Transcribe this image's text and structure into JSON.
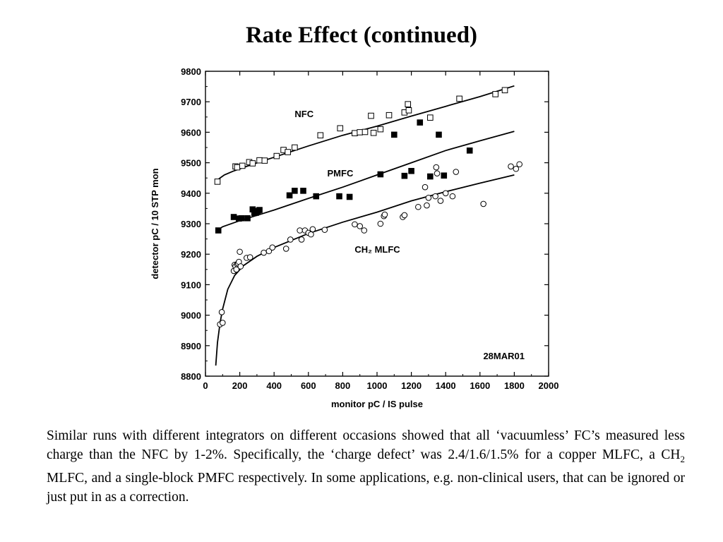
{
  "slide": {
    "title": "Rate Effect (continued)",
    "body": [
      {
        "t": "Similar runs with different integrators on different occasions showed that all ‘vacuumless’ FC’s measured less charge than the NFC by 1-2%. Specifically, the ‘charge defect’ was 2.4/1.6/1.5% for a copper MLFC, a CH"
      },
      {
        "t": "2",
        "sub": true
      },
      {
        "t": " MLFC, and a single-block PMFC respectively. In some applications, e.g. non-clinical users, that can be ignored or just put in as a correction."
      }
    ]
  },
  "chart_data": {
    "type": "scatter",
    "xlabel": "monitor pC / IS pulse",
    "ylabel": "detector pC / 10 STP mon",
    "xlim": [
      0,
      2000
    ],
    "ylim": [
      8800,
      9800
    ],
    "xticks": [
      0,
      200,
      400,
      600,
      800,
      1000,
      1200,
      1400,
      1600,
      1800,
      2000
    ],
    "yticks": [
      8800,
      8900,
      9000,
      9100,
      9200,
      9300,
      9400,
      9500,
      9600,
      9700,
      9800
    ],
    "stamp": "28MAR01",
    "grid": false,
    "series": [
      {
        "name": "NFC",
        "marker": "open-square",
        "label_at": [
          520,
          9650
        ],
        "points": [
          [
            70,
            9438
          ],
          [
            175,
            9488
          ],
          [
            185,
            9485
          ],
          [
            215,
            9490
          ],
          [
            255,
            9502
          ],
          [
            275,
            9498
          ],
          [
            315,
            9508
          ],
          [
            345,
            9507
          ],
          [
            415,
            9522
          ],
          [
            455,
            9542
          ],
          [
            480,
            9535
          ],
          [
            520,
            9550
          ],
          [
            670,
            9590
          ],
          [
            785,
            9613
          ],
          [
            870,
            9597
          ],
          [
            900,
            9600
          ],
          [
            930,
            9601
          ],
          [
            965,
            9654
          ],
          [
            980,
            9598
          ],
          [
            1020,
            9610
          ],
          [
            1070,
            9656
          ],
          [
            1160,
            9665
          ],
          [
            1180,
            9692
          ],
          [
            1185,
            9672
          ],
          [
            1310,
            9648
          ],
          [
            1480,
            9710
          ],
          [
            1690,
            9725
          ],
          [
            1745,
            9738
          ]
        ],
        "fit": [
          [
            60,
            9430
          ],
          [
            80,
            9448
          ],
          [
            110,
            9460
          ],
          [
            160,
            9472
          ],
          [
            250,
            9490
          ],
          [
            400,
            9518
          ],
          [
            600,
            9555
          ],
          [
            800,
            9590
          ],
          [
            1000,
            9620
          ],
          [
            1200,
            9653
          ],
          [
            1400,
            9685
          ],
          [
            1600,
            9717
          ],
          [
            1800,
            9752
          ]
        ]
      },
      {
        "name": "PMFC",
        "marker": "filled-square",
        "label_at": [
          710,
          9455
        ],
        "points": [
          [
            75,
            9278
          ],
          [
            165,
            9322
          ],
          [
            195,
            9317
          ],
          [
            210,
            9318
          ],
          [
            245,
            9318
          ],
          [
            275,
            9347
          ],
          [
            285,
            9335
          ],
          [
            295,
            9336
          ],
          [
            305,
            9342
          ],
          [
            315,
            9345
          ],
          [
            490,
            9393
          ],
          [
            520,
            9408
          ],
          [
            570,
            9408
          ],
          [
            645,
            9390
          ],
          [
            780,
            9390
          ],
          [
            840,
            9388
          ],
          [
            1020,
            9462
          ],
          [
            1100,
            9592
          ],
          [
            1160,
            9457
          ],
          [
            1200,
            9473
          ],
          [
            1250,
            9632
          ],
          [
            1310,
            9455
          ],
          [
            1360,
            9592
          ],
          [
            1390,
            9458
          ],
          [
            1540,
            9540
          ]
        ],
        "fit": [
          [
            60,
            9275
          ],
          [
            100,
            9290
          ],
          [
            200,
            9310
          ],
          [
            400,
            9345
          ],
          [
            600,
            9383
          ],
          [
            800,
            9420
          ],
          [
            1000,
            9460
          ],
          [
            1200,
            9500
          ],
          [
            1400,
            9540
          ],
          [
            1600,
            9572
          ],
          [
            1800,
            9603
          ]
        ]
      },
      {
        "name": "CH₂ MLFC",
        "marker": "open-circle",
        "label_at": [
          870,
          9205
        ],
        "points": [
          [
            85,
            8970
          ],
          [
            95,
            9010
          ],
          [
            100,
            8975
          ],
          [
            165,
            9145
          ],
          [
            170,
            9165
          ],
          [
            175,
            9160
          ],
          [
            180,
            9150
          ],
          [
            185,
            9167
          ],
          [
            190,
            9170
          ],
          [
            195,
            9175
          ],
          [
            200,
            9208
          ],
          [
            205,
            9160
          ],
          [
            240,
            9188
          ],
          [
            260,
            9190
          ],
          [
            340,
            9205
          ],
          [
            370,
            9210
          ],
          [
            390,
            9222
          ],
          [
            470,
            9218
          ],
          [
            495,
            9248
          ],
          [
            550,
            9278
          ],
          [
            560,
            9248
          ],
          [
            580,
            9278
          ],
          [
            600,
            9270
          ],
          [
            615,
            9265
          ],
          [
            625,
            9282
          ],
          [
            695,
            9280
          ],
          [
            870,
            9298
          ],
          [
            900,
            9292
          ],
          [
            925,
            9278
          ],
          [
            1020,
            9300
          ],
          [
            1040,
            9325
          ],
          [
            1045,
            9330
          ],
          [
            1150,
            9322
          ],
          [
            1160,
            9328
          ],
          [
            1240,
            9355
          ],
          [
            1280,
            9420
          ],
          [
            1290,
            9360
          ],
          [
            1300,
            9385
          ],
          [
            1340,
            9390
          ],
          [
            1345,
            9485
          ],
          [
            1350,
            9465
          ],
          [
            1370,
            9375
          ],
          [
            1400,
            9400
          ],
          [
            1440,
            9390
          ],
          [
            1460,
            9470
          ],
          [
            1620,
            9365
          ],
          [
            1780,
            9488
          ],
          [
            1810,
            9480
          ],
          [
            1830,
            9495
          ]
        ],
        "fit": [
          [
            60,
            8835
          ],
          [
            70,
            8910
          ],
          [
            85,
            8975
          ],
          [
            100,
            9020
          ],
          [
            130,
            9085
          ],
          [
            170,
            9130
          ],
          [
            220,
            9162
          ],
          [
            300,
            9193
          ],
          [
            400,
            9222
          ],
          [
            600,
            9268
          ],
          [
            800,
            9305
          ],
          [
            1000,
            9338
          ],
          [
            1200,
            9375
          ],
          [
            1400,
            9405
          ],
          [
            1600,
            9433
          ],
          [
            1800,
            9460
          ]
        ]
      }
    ]
  }
}
